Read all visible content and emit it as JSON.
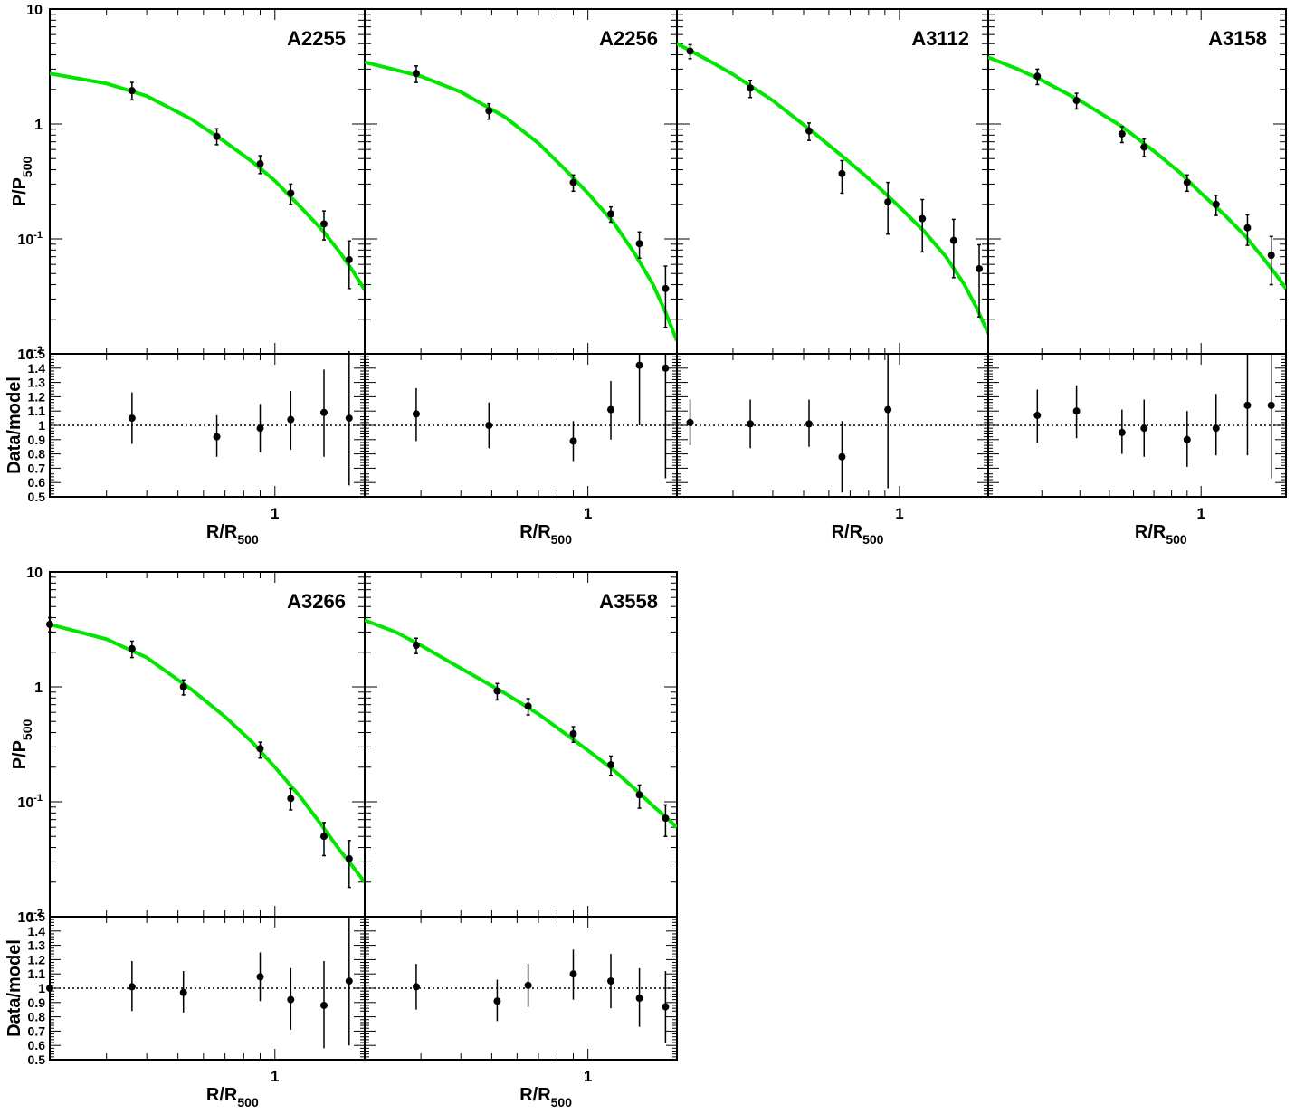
{
  "chart_data": {
    "type": "scatter",
    "xlabel": "R/R",
    "xlabel_sub": "500",
    "ylabel_top": "P/P",
    "ylabel_top_sub": "500",
    "ylabel_bottom": "Data/model",
    "xtick_label": "1",
    "xlim": [
      0.2,
      1.9
    ],
    "xscale": "log",
    "ylim_top": [
      0.01,
      10
    ],
    "yscale_top": "log",
    "ylim_bottom": [
      0.5,
      1.5
    ],
    "top_tick_labels": [
      {
        "value": 10,
        "base": "10",
        "exp": ""
      },
      {
        "value": 1,
        "base": "1",
        "exp": ""
      },
      {
        "value": 0.1,
        "base": "10",
        "exp": "-1"
      },
      {
        "value": 0.01,
        "base": "10",
        "exp": "-2"
      }
    ],
    "bottom_tick_labels": [
      "1.5",
      "1.4",
      "1.3",
      "1.2",
      "1.1",
      "1",
      "0.9",
      "0.8",
      "0.7",
      "0.6",
      "0.5"
    ],
    "model_color": "#00e600",
    "panels": [
      {
        "name": "A2255",
        "points": [
          {
            "x": 0.36,
            "y": 1.95,
            "lo": 1.62,
            "hi": 2.3
          },
          {
            "x": 0.66,
            "y": 0.78,
            "lo": 0.66,
            "hi": 0.91
          },
          {
            "x": 0.9,
            "y": 0.45,
            "lo": 0.37,
            "hi": 0.53
          },
          {
            "x": 1.12,
            "y": 0.25,
            "lo": 0.2,
            "hi": 0.3
          },
          {
            "x": 1.42,
            "y": 0.135,
            "lo": 0.098,
            "hi": 0.175
          },
          {
            "x": 1.7,
            "y": 0.066,
            "lo": 0.037,
            "hi": 0.096
          }
        ],
        "model": [
          {
            "x": 0.2,
            "y": 2.75
          },
          {
            "x": 0.3,
            "y": 2.25
          },
          {
            "x": 0.4,
            "y": 1.75
          },
          {
            "x": 0.55,
            "y": 1.1
          },
          {
            "x": 0.7,
            "y": 0.7
          },
          {
            "x": 0.85,
            "y": 0.47
          },
          {
            "x": 1.0,
            "y": 0.32
          },
          {
            "x": 1.2,
            "y": 0.19
          },
          {
            "x": 1.4,
            "y": 0.12
          },
          {
            "x": 1.6,
            "y": 0.075
          },
          {
            "x": 1.75,
            "y": 0.052
          },
          {
            "x": 1.9,
            "y": 0.036
          }
        ],
        "ratio": [
          {
            "x": 0.36,
            "y": 1.05,
            "lo": 0.87,
            "hi": 1.23
          },
          {
            "x": 0.66,
            "y": 0.92,
            "lo": 0.78,
            "hi": 1.07
          },
          {
            "x": 0.9,
            "y": 0.98,
            "lo": 0.81,
            "hi": 1.15
          },
          {
            "x": 1.12,
            "y": 1.04,
            "lo": 0.83,
            "hi": 1.24
          },
          {
            "x": 1.42,
            "y": 1.09,
            "lo": 0.78,
            "hi": 1.39
          },
          {
            "x": 1.7,
            "y": 1.05,
            "lo": 0.58,
            "hi": 1.52
          }
        ]
      },
      {
        "name": "A2256",
        "points": [
          {
            "x": 0.29,
            "y": 2.75,
            "lo": 2.3,
            "hi": 3.2
          },
          {
            "x": 0.49,
            "y": 1.3,
            "lo": 1.1,
            "hi": 1.5
          },
          {
            "x": 0.9,
            "y": 0.31,
            "lo": 0.26,
            "hi": 0.36
          },
          {
            "x": 1.18,
            "y": 0.165,
            "lo": 0.14,
            "hi": 0.19
          },
          {
            "x": 1.45,
            "y": 0.091,
            "lo": 0.068,
            "hi": 0.115
          },
          {
            "x": 1.75,
            "y": 0.037,
            "lo": 0.017,
            "hi": 0.058
          }
        ],
        "model": [
          {
            "x": 0.2,
            "y": 3.45
          },
          {
            "x": 0.3,
            "y": 2.6
          },
          {
            "x": 0.4,
            "y": 1.9
          },
          {
            "x": 0.55,
            "y": 1.15
          },
          {
            "x": 0.7,
            "y": 0.68
          },
          {
            "x": 0.85,
            "y": 0.4
          },
          {
            "x": 1.0,
            "y": 0.25
          },
          {
            "x": 1.2,
            "y": 0.14
          },
          {
            "x": 1.4,
            "y": 0.075
          },
          {
            "x": 1.6,
            "y": 0.04
          },
          {
            "x": 1.75,
            "y": 0.023
          },
          {
            "x": 1.9,
            "y": 0.013
          }
        ],
        "ratio": [
          {
            "x": 0.29,
            "y": 1.08,
            "lo": 0.89,
            "hi": 1.26
          },
          {
            "x": 0.49,
            "y": 1.0,
            "lo": 0.84,
            "hi": 1.16
          },
          {
            "x": 0.9,
            "y": 0.89,
            "lo": 0.75,
            "hi": 1.03
          },
          {
            "x": 1.18,
            "y": 1.11,
            "lo": 0.9,
            "hi": 1.31
          },
          {
            "x": 1.45,
            "y": 1.42,
            "lo": 1.0,
            "hi": 1.5
          },
          {
            "x": 1.75,
            "y": 1.4,
            "lo": 0.63,
            "hi": 1.5
          }
        ]
      },
      {
        "name": "A3112",
        "points": [
          {
            "x": 0.22,
            "y": 4.3,
            "lo": 3.7,
            "hi": 4.9
          },
          {
            "x": 0.34,
            "y": 2.05,
            "lo": 1.7,
            "hi": 2.4
          },
          {
            "x": 0.52,
            "y": 0.87,
            "lo": 0.72,
            "hi": 1.02
          },
          {
            "x": 0.66,
            "y": 0.37,
            "lo": 0.25,
            "hi": 0.48
          },
          {
            "x": 0.92,
            "y": 0.21,
            "lo": 0.11,
            "hi": 0.31
          },
          {
            "x": 1.18,
            "y": 0.15,
            "lo": 0.077,
            "hi": 0.22
          },
          {
            "x": 1.48,
            "y": 0.097,
            "lo": 0.046,
            "hi": 0.148
          },
          {
            "x": 1.78,
            "y": 0.055,
            "lo": 0.021,
            "hi": 0.089
          }
        ],
        "model": [
          {
            "x": 0.2,
            "y": 5.0
          },
          {
            "x": 0.25,
            "y": 3.6
          },
          {
            "x": 0.3,
            "y": 2.7
          },
          {
            "x": 0.4,
            "y": 1.6
          },
          {
            "x": 0.55,
            "y": 0.8
          },
          {
            "x": 0.7,
            "y": 0.46
          },
          {
            "x": 0.85,
            "y": 0.29
          },
          {
            "x": 1.0,
            "y": 0.19
          },
          {
            "x": 1.2,
            "y": 0.115
          },
          {
            "x": 1.4,
            "y": 0.07
          },
          {
            "x": 1.6,
            "y": 0.04
          },
          {
            "x": 1.75,
            "y": 0.025
          },
          {
            "x": 1.9,
            "y": 0.015
          }
        ],
        "ratio": [
          {
            "x": 0.22,
            "y": 1.02,
            "lo": 0.86,
            "hi": 1.18
          },
          {
            "x": 0.34,
            "y": 1.01,
            "lo": 0.84,
            "hi": 1.18
          },
          {
            "x": 0.52,
            "y": 1.01,
            "lo": 0.85,
            "hi": 1.18
          },
          {
            "x": 0.66,
            "y": 0.78,
            "lo": 0.53,
            "hi": 1.03
          },
          {
            "x": 0.92,
            "y": 1.11,
            "lo": 0.56,
            "hi": 1.5
          }
        ]
      },
      {
        "name": "A3158",
        "points": [
          {
            "x": 0.29,
            "y": 2.6,
            "lo": 2.2,
            "hi": 3.0
          },
          {
            "x": 0.39,
            "y": 1.6,
            "lo": 1.35,
            "hi": 1.85
          },
          {
            "x": 0.55,
            "y": 0.82,
            "lo": 0.69,
            "hi": 0.95
          },
          {
            "x": 0.65,
            "y": 0.63,
            "lo": 0.52,
            "hi": 0.74
          },
          {
            "x": 0.9,
            "y": 0.31,
            "lo": 0.26,
            "hi": 0.36
          },
          {
            "x": 1.12,
            "y": 0.2,
            "lo": 0.16,
            "hi": 0.24
          },
          {
            "x": 1.42,
            "y": 0.125,
            "lo": 0.088,
            "hi": 0.162
          },
          {
            "x": 1.7,
            "y": 0.072,
            "lo": 0.04,
            "hi": 0.105
          }
        ],
        "model": [
          {
            "x": 0.2,
            "y": 3.8
          },
          {
            "x": 0.25,
            "y": 3.0
          },
          {
            "x": 0.3,
            "y": 2.4
          },
          {
            "x": 0.4,
            "y": 1.6
          },
          {
            "x": 0.55,
            "y": 0.95
          },
          {
            "x": 0.7,
            "y": 0.58
          },
          {
            "x": 0.85,
            "y": 0.38
          },
          {
            "x": 1.0,
            "y": 0.25
          },
          {
            "x": 1.2,
            "y": 0.16
          },
          {
            "x": 1.4,
            "y": 0.105
          },
          {
            "x": 1.6,
            "y": 0.068
          },
          {
            "x": 1.75,
            "y": 0.05
          },
          {
            "x": 1.9,
            "y": 0.037
          }
        ],
        "ratio": [
          {
            "x": 0.29,
            "y": 1.07,
            "lo": 0.88,
            "hi": 1.25
          },
          {
            "x": 0.39,
            "y": 1.1,
            "lo": 0.91,
            "hi": 1.28
          },
          {
            "x": 0.55,
            "y": 0.95,
            "lo": 0.8,
            "hi": 1.11
          },
          {
            "x": 0.65,
            "y": 0.98,
            "lo": 0.78,
            "hi": 1.18
          },
          {
            "x": 0.9,
            "y": 0.9,
            "lo": 0.71,
            "hi": 1.1
          },
          {
            "x": 1.12,
            "y": 0.98,
            "lo": 0.79,
            "hi": 1.22
          },
          {
            "x": 1.42,
            "y": 1.14,
            "lo": 0.79,
            "hi": 1.5
          },
          {
            "x": 1.7,
            "y": 1.14,
            "lo": 0.63,
            "hi": 1.5
          }
        ]
      },
      {
        "name": "A3266",
        "points": [
          {
            "x": 0.2,
            "y": 3.5,
            "lo": 3.0,
            "hi": 4.0
          },
          {
            "x": 0.36,
            "y": 2.15,
            "lo": 1.8,
            "hi": 2.5
          },
          {
            "x": 0.52,
            "y": 1.0,
            "lo": 0.85,
            "hi": 1.15
          },
          {
            "x": 0.9,
            "y": 0.29,
            "lo": 0.24,
            "hi": 0.33
          },
          {
            "x": 1.12,
            "y": 0.107,
            "lo": 0.085,
            "hi": 0.13
          },
          {
            "x": 1.42,
            "y": 0.05,
            "lo": 0.034,
            "hi": 0.066
          },
          {
            "x": 1.7,
            "y": 0.032,
            "lo": 0.018,
            "hi": 0.046
          }
        ],
        "model": [
          {
            "x": 0.2,
            "y": 3.5
          },
          {
            "x": 0.3,
            "y": 2.6
          },
          {
            "x": 0.4,
            "y": 1.8
          },
          {
            "x": 0.55,
            "y": 0.95
          },
          {
            "x": 0.7,
            "y": 0.55
          },
          {
            "x": 0.85,
            "y": 0.33
          },
          {
            "x": 1.0,
            "y": 0.2
          },
          {
            "x": 1.2,
            "y": 0.11
          },
          {
            "x": 1.4,
            "y": 0.062
          },
          {
            "x": 1.6,
            "y": 0.037
          },
          {
            "x": 1.75,
            "y": 0.027
          },
          {
            "x": 1.9,
            "y": 0.02
          }
        ],
        "ratio": [
          {
            "x": 0.2,
            "y": 1.0,
            "lo": 0.83,
            "hi": 1.17
          },
          {
            "x": 0.36,
            "y": 1.01,
            "lo": 0.84,
            "hi": 1.19
          },
          {
            "x": 0.52,
            "y": 0.97,
            "lo": 0.83,
            "hi": 1.12
          },
          {
            "x": 0.9,
            "y": 1.08,
            "lo": 0.91,
            "hi": 1.25
          },
          {
            "x": 1.12,
            "y": 0.92,
            "lo": 0.71,
            "hi": 1.14
          },
          {
            "x": 1.42,
            "y": 0.88,
            "lo": 0.58,
            "hi": 1.19
          },
          {
            "x": 1.7,
            "y": 1.05,
            "lo": 0.6,
            "hi": 1.5
          }
        ]
      },
      {
        "name": "A3558",
        "points": [
          {
            "x": 0.29,
            "y": 2.3,
            "lo": 1.95,
            "hi": 2.65
          },
          {
            "x": 0.52,
            "y": 0.92,
            "lo": 0.77,
            "hi": 1.07
          },
          {
            "x": 0.65,
            "y": 0.68,
            "lo": 0.57,
            "hi": 0.79
          },
          {
            "x": 0.9,
            "y": 0.39,
            "lo": 0.33,
            "hi": 0.45
          },
          {
            "x": 1.18,
            "y": 0.21,
            "lo": 0.17,
            "hi": 0.25
          },
          {
            "x": 1.45,
            "y": 0.115,
            "lo": 0.088,
            "hi": 0.14
          },
          {
            "x": 1.75,
            "y": 0.072,
            "lo": 0.05,
            "hi": 0.094
          }
        ],
        "model": [
          {
            "x": 0.2,
            "y": 3.8
          },
          {
            "x": 0.25,
            "y": 3.0
          },
          {
            "x": 0.3,
            "y": 2.3
          },
          {
            "x": 0.4,
            "y": 1.45
          },
          {
            "x": 0.55,
            "y": 0.88
          },
          {
            "x": 0.7,
            "y": 0.58
          },
          {
            "x": 0.85,
            "y": 0.39
          },
          {
            "x": 1.0,
            "y": 0.28
          },
          {
            "x": 1.2,
            "y": 0.19
          },
          {
            "x": 1.4,
            "y": 0.13
          },
          {
            "x": 1.6,
            "y": 0.092
          },
          {
            "x": 1.75,
            "y": 0.074
          },
          {
            "x": 1.9,
            "y": 0.06
          }
        ],
        "ratio": [
          {
            "x": 0.29,
            "y": 1.01,
            "lo": 0.85,
            "hi": 1.17
          },
          {
            "x": 0.52,
            "y": 0.91,
            "lo": 0.77,
            "hi": 1.06
          },
          {
            "x": 0.65,
            "y": 1.02,
            "lo": 0.87,
            "hi": 1.17
          },
          {
            "x": 0.9,
            "y": 1.1,
            "lo": 0.92,
            "hi": 1.27
          },
          {
            "x": 1.18,
            "y": 1.05,
            "lo": 0.86,
            "hi": 1.24
          },
          {
            "x": 1.45,
            "y": 0.93,
            "lo": 0.73,
            "hi": 1.14
          },
          {
            "x": 1.75,
            "y": 0.87,
            "lo": 0.62,
            "hi": 1.12
          }
        ]
      }
    ]
  }
}
